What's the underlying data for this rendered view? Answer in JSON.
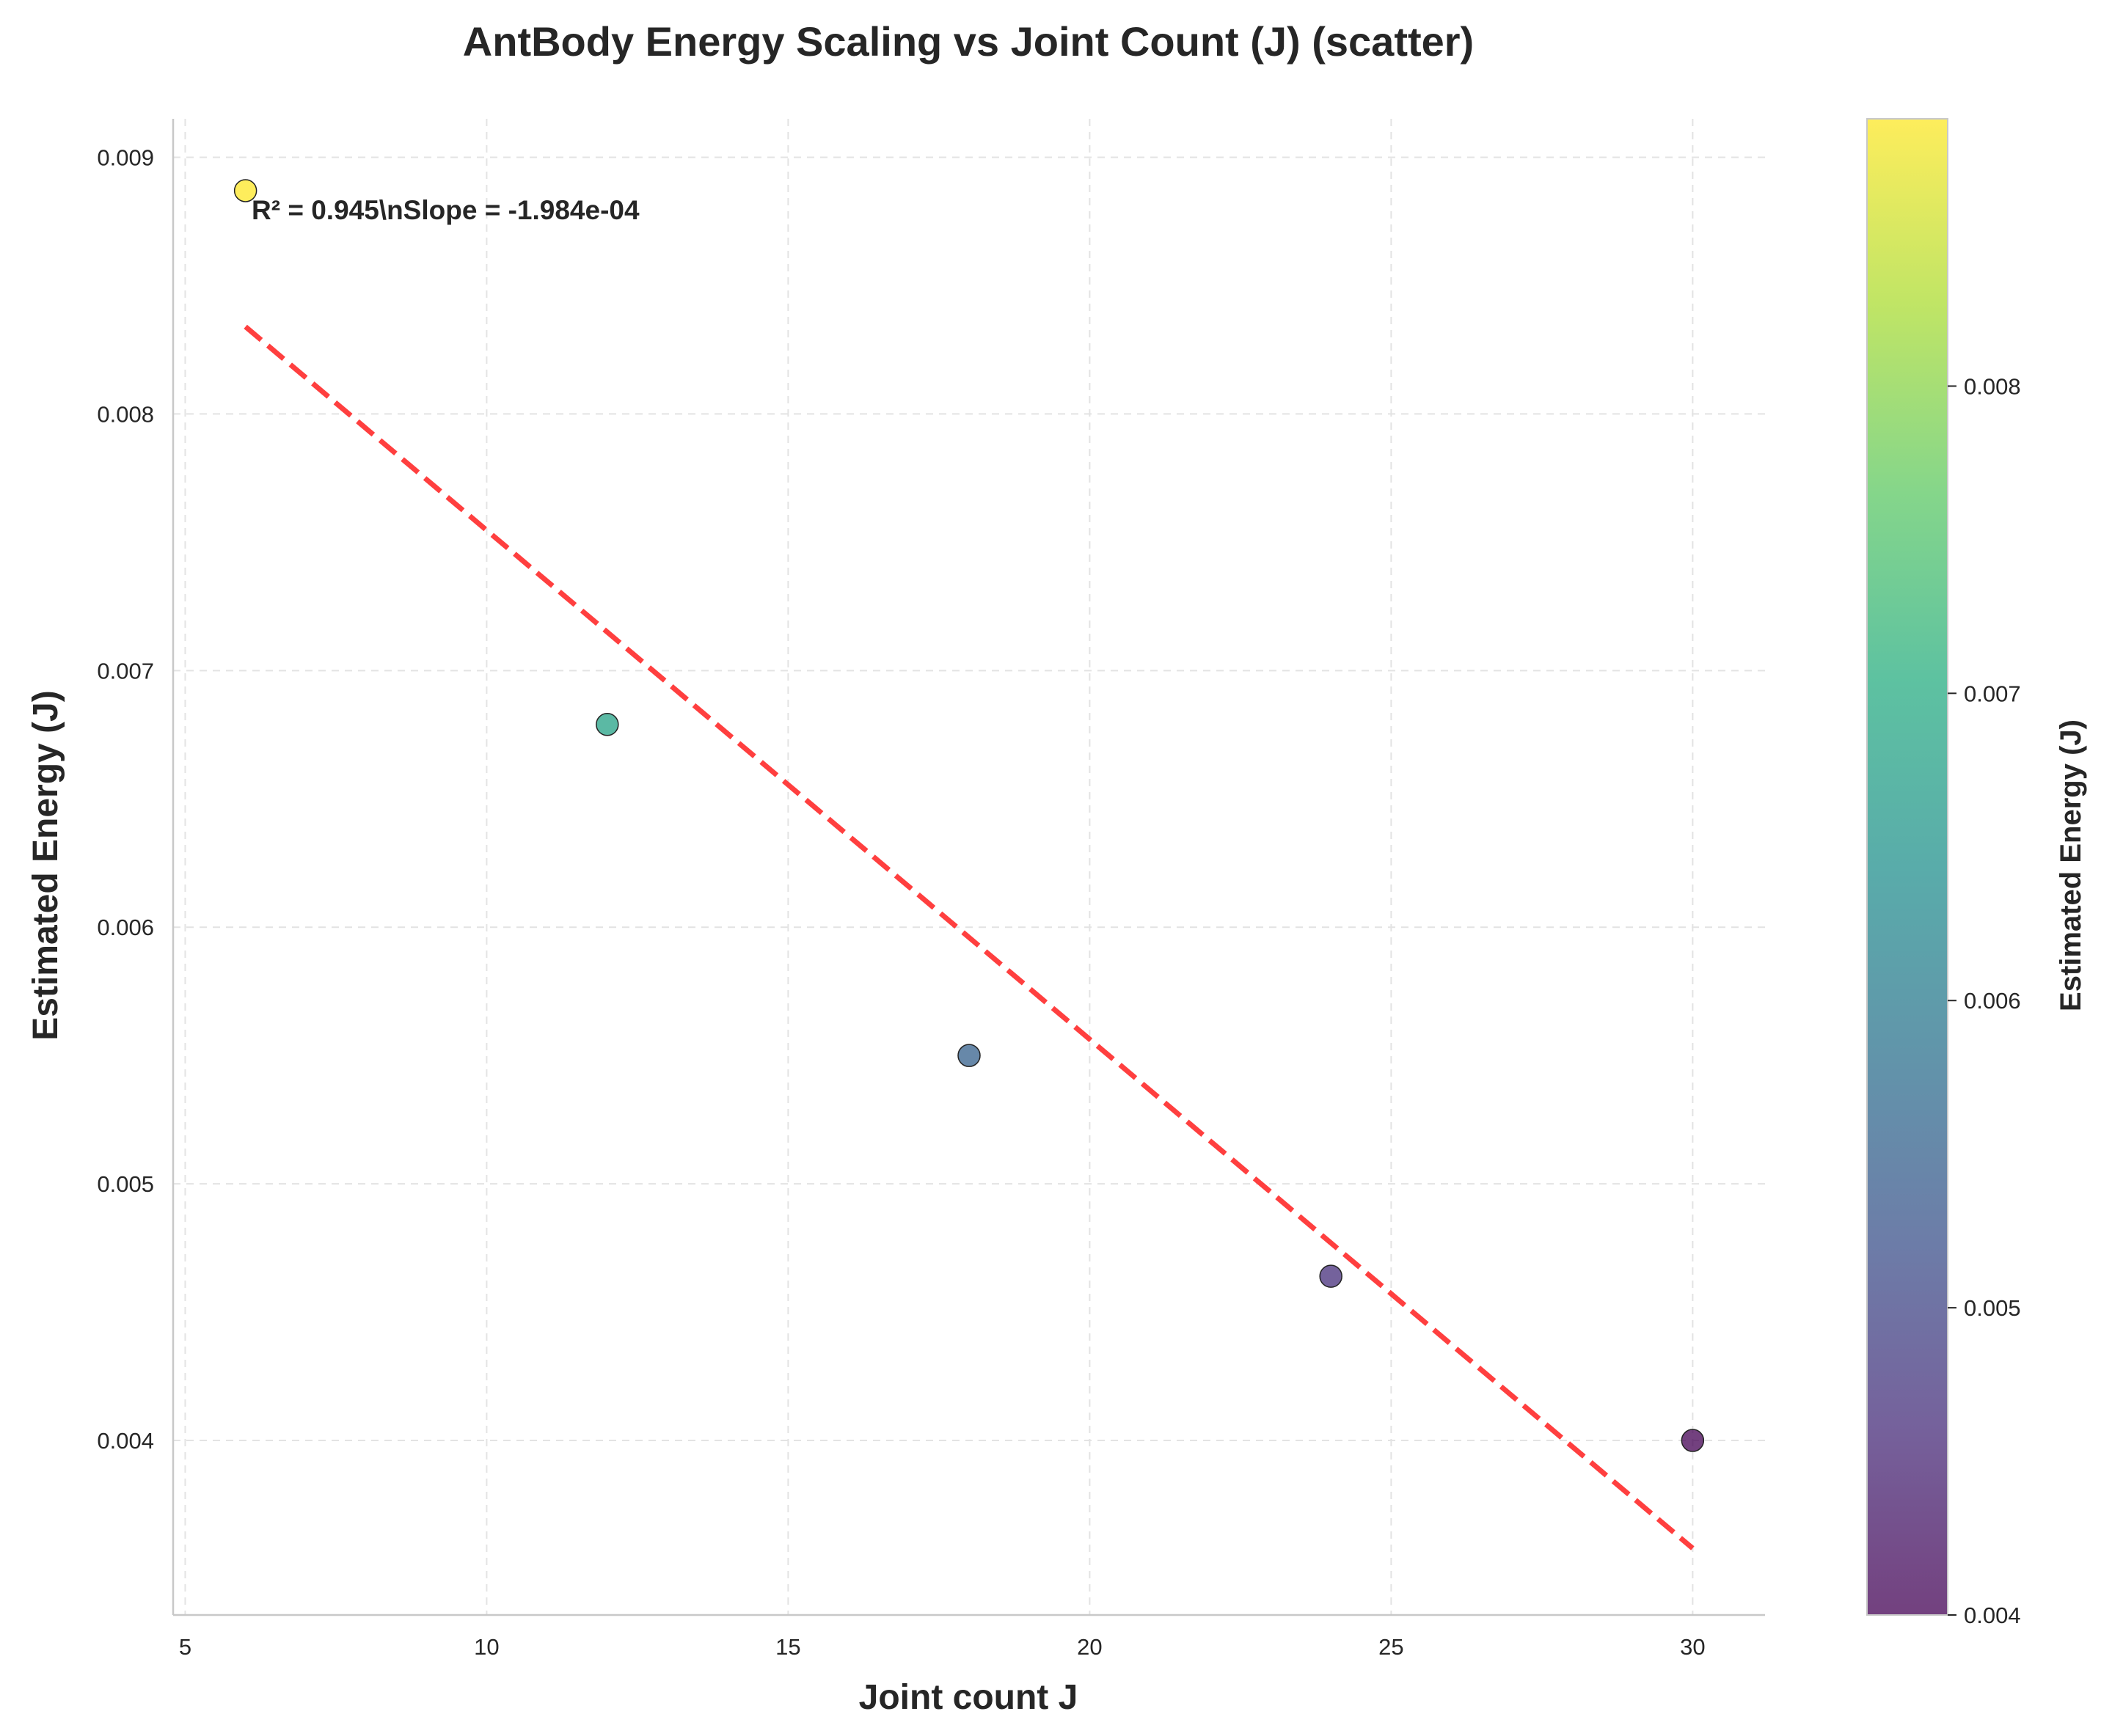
{
  "chart_data": {
    "type": "scatter",
    "title": "AntBody Energy Scaling vs Joint Count (J) (scatter)",
    "xlabel": "Joint count J",
    "ylabel": "Estimated Energy (J)",
    "xlim": [
      4.8,
      31.2
    ],
    "ylim": [
      0.00332,
      0.00915
    ],
    "xticks": [
      5,
      10,
      15,
      20,
      25,
      30
    ],
    "xtick_labels": [
      "5",
      "10",
      "15",
      "20",
      "25",
      "30"
    ],
    "yticks": [
      0.004,
      0.005,
      0.006,
      0.007,
      0.008,
      0.009
    ],
    "ytick_labels": [
      "0.004",
      "0.005",
      "0.006",
      "0.007",
      "0.008",
      "0.009"
    ],
    "grid": true,
    "series": [
      {
        "x": [
          6,
          12,
          18,
          24,
          30
        ],
        "y": [
          0.00887,
          0.00679,
          0.0055,
          0.00464,
          0.004
        ]
      }
    ],
    "trendline": {
      "x": [
        6,
        30
      ],
      "y": [
        0.00834,
        0.00358
      ],
      "color": "#ff2a2a",
      "style": "dashed"
    },
    "annotation": "R² = 0.945\\nSlope = -1.984e-04",
    "colorbar": {
      "label": "Estimated Energy (J)",
      "range": [
        0.004,
        0.00887
      ],
      "ticks": [
        0.004,
        0.005,
        0.006,
        0.007,
        0.008
      ],
      "tick_labels": [
        "0.004",
        "0.005",
        "0.006",
        "0.007",
        "0.008"
      ],
      "colormap": "viridis"
    }
  }
}
